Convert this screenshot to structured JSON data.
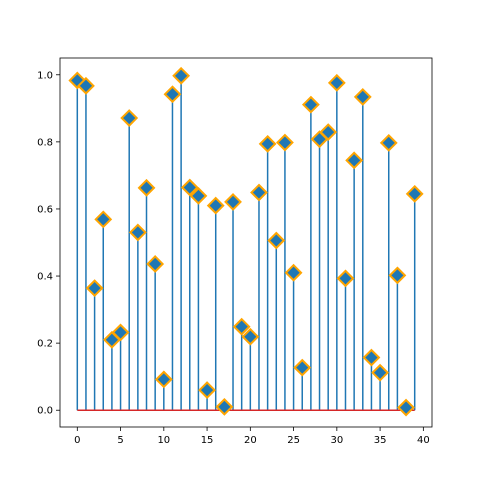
{
  "chart_data": {
    "type": "stem",
    "x": [
      0,
      1,
      2,
      3,
      4,
      5,
      6,
      7,
      8,
      9,
      10,
      11,
      12,
      13,
      14,
      15,
      16,
      17,
      18,
      19,
      20,
      21,
      22,
      23,
      24,
      25,
      26,
      27,
      28,
      29,
      30,
      31,
      32,
      33,
      34,
      35,
      36,
      37,
      38,
      39
    ],
    "values": [
      0.983,
      0.967,
      0.364,
      0.569,
      0.21,
      0.232,
      0.871,
      0.53,
      0.663,
      0.436,
      0.092,
      0.942,
      0.997,
      0.664,
      0.639,
      0.06,
      0.61,
      0.01,
      0.621,
      0.249,
      0.219,
      0.649,
      0.794,
      0.506,
      0.798,
      0.41,
      0.127,
      0.911,
      0.808,
      0.829,
      0.976,
      0.393,
      0.745,
      0.934,
      0.157,
      0.112,
      0.797,
      0.402,
      0.008,
      0.645
    ],
    "xlim": [
      -2.0,
      41.0
    ],
    "ylim": [
      -0.05,
      1.05
    ],
    "xticks": [
      0,
      5,
      10,
      15,
      20,
      25,
      30,
      35,
      40
    ],
    "yticks": [
      0.0,
      0.2,
      0.4,
      0.6,
      0.8,
      1.0
    ],
    "xtick_labels": [
      "0",
      "5",
      "10",
      "15",
      "20",
      "25",
      "30",
      "35",
      "40"
    ],
    "ytick_labels": [
      "0.0",
      "0.2",
      "0.4",
      "0.6",
      "0.8",
      "1.0"
    ],
    "title": "",
    "xlabel": "",
    "ylabel": "",
    "grid": false,
    "baseline": 0.0,
    "marker": "diamond",
    "colors": {
      "stem": "#1f77b4",
      "marker_fill": "#1f77b4",
      "marker_edge": "#ffa500",
      "baseline": "#d62728",
      "axes": "#000000"
    }
  }
}
